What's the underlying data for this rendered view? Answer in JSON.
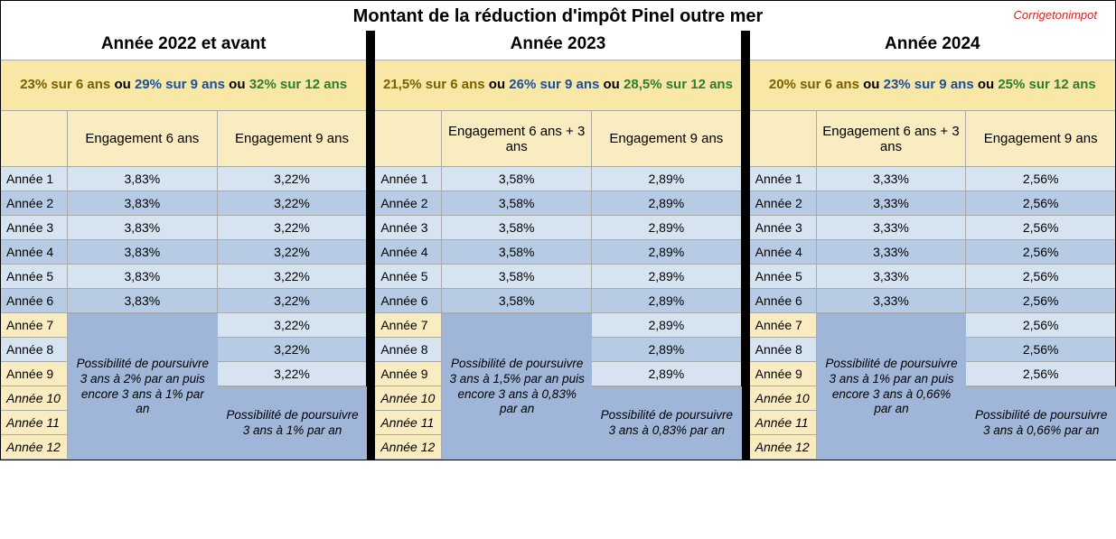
{
  "colors": {
    "watermark": "#d62222",
    "banner_bg": "#f8e7a5",
    "header_cell_bg": "#f8ecc0",
    "stripe_light": "#d6e4f2",
    "stripe_dark": "#b7cce4",
    "note_bg": "#9fb6d9",
    "rate6": "#7a6000",
    "rate9": "#1a4fa3",
    "rate12": "#2e7d32"
  },
  "title": "Montant de la réduction d'impôt Pinel outre mer",
  "watermark": "Corrigetonimpot",
  "row_labels": [
    "Année 1",
    "Année 2",
    "Année 3",
    "Année 4",
    "Année 5",
    "Année 6",
    "Année 7",
    "Année 8",
    "Année 9",
    "Année 10",
    "Année 11",
    "Année 12"
  ],
  "ou": " ou ",
  "sections": [
    {
      "year_title": "Année 2022 et avant",
      "rate6": "23% sur 6 ans",
      "rate9": "29% sur 9 ans",
      "rate12": "32% sur 12 ans",
      "eng6_label": "Engagement 6 ans",
      "eng9_label": "Engagement 9 ans",
      "col6": [
        "3,83%",
        "3,83%",
        "3,83%",
        "3,83%",
        "3,83%",
        "3,83%",
        "",
        "",
        "",
        "",
        "",
        ""
      ],
      "col9": [
        "3,22%",
        "3,22%",
        "3,22%",
        "3,22%",
        "3,22%",
        "3,22%",
        "3,22%",
        "3,22%",
        "3,22%",
        "",
        "",
        ""
      ],
      "note6": "Possibilité de poursuivre 3 ans à 2% par an puis encore 3 ans à 1% par an",
      "note9": "Possibilité de poursuivre 3 ans à 1% par an"
    },
    {
      "year_title": "Année 2023",
      "rate6": "21,5% sur 6 ans",
      "rate9": "26% sur 9 ans",
      "rate12": "28,5% sur 12 ans",
      "eng6_label": "Engagement 6 ans + 3 ans",
      "eng9_label": "Engagement 9 ans",
      "col6": [
        "3,58%",
        "3,58%",
        "3,58%",
        "3,58%",
        "3,58%",
        "3,58%",
        "",
        "",
        "",
        "",
        "",
        ""
      ],
      "col9": [
        "2,89%",
        "2,89%",
        "2,89%",
        "2,89%",
        "2,89%",
        "2,89%",
        "2,89%",
        "2,89%",
        "2,89%",
        "",
        "",
        ""
      ],
      "note6": "Possibilité de poursuivre 3 ans à 1,5% par an puis encore 3 ans à 0,83% par an",
      "note9": "Possibilité de poursuivre 3 ans à 0,83% par an"
    },
    {
      "year_title": "Année 2024",
      "rate6": "20% sur 6 ans",
      "rate9": "23% sur 9 ans",
      "rate12": "25% sur 12 ans",
      "eng6_label": "Engagement 6 ans + 3 ans",
      "eng9_label": "Engagement 9 ans",
      "col6": [
        "3,33%",
        "3,33%",
        "3,33%",
        "3,33%",
        "3,33%",
        "3,33%",
        "",
        "",
        "",
        "",
        "",
        ""
      ],
      "col9": [
        "2,56%",
        "2,56%",
        "2,56%",
        "2,56%",
        "2,56%",
        "2,56%",
        "2,56%",
        "2,56%",
        "2,56%",
        "",
        "",
        ""
      ],
      "note6": "Possibilité de poursuivre 3 ans à 1% par an puis encore 3 ans à 0,66% par an",
      "note9": "Possibilité de poursuivre 3 ans à 0,66% par an"
    }
  ]
}
